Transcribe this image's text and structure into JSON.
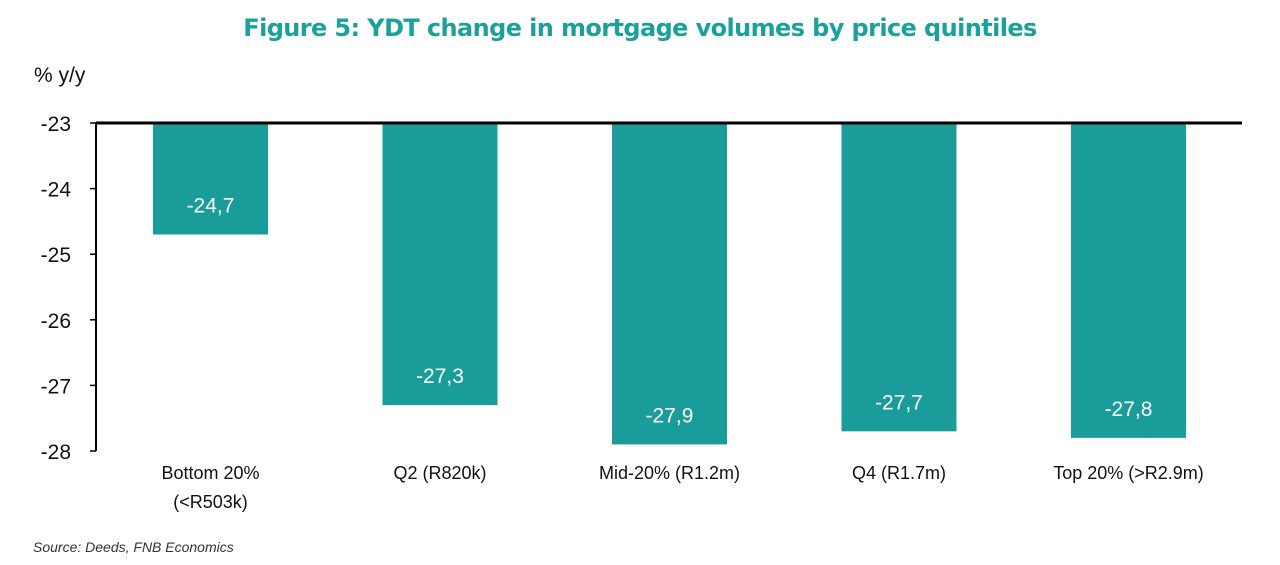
{
  "header": {
    "title": "Figure 5: YDT change in mortgage volumes by price quintiles"
  },
  "footer": {
    "source": "Source: Deeds, FNB Economics"
  },
  "colors": {
    "bar": "#1a9c9b",
    "title": "#1ba09c",
    "axis": "#000000"
  },
  "chart_data": {
    "type": "bar",
    "title": "Figure 5: YDT change in mortgage volumes by price quintiles",
    "ylabel": "% y/y",
    "xlabel": "",
    "ylim": [
      -28,
      -23
    ],
    "yticks": [
      "-23",
      "-24",
      "-25",
      "-26",
      "-27",
      "-28"
    ],
    "categories": [
      [
        "Bottom 20%",
        "(<R503k)"
      ],
      [
        "Q2 (R820k)"
      ],
      [
        "Mid-20% (R1.2m)"
      ],
      [
        "Q4 (R1.7m)"
      ],
      [
        "Top 20% (>R2.9m)"
      ]
    ],
    "values": [
      -24.7,
      -27.3,
      -27.9,
      -27.7,
      -27.8
    ],
    "data_labels": [
      "-24,7",
      "-27,3",
      "-27,9",
      "-27,7",
      "-27,8"
    ],
    "grid": false,
    "legend": "none"
  }
}
